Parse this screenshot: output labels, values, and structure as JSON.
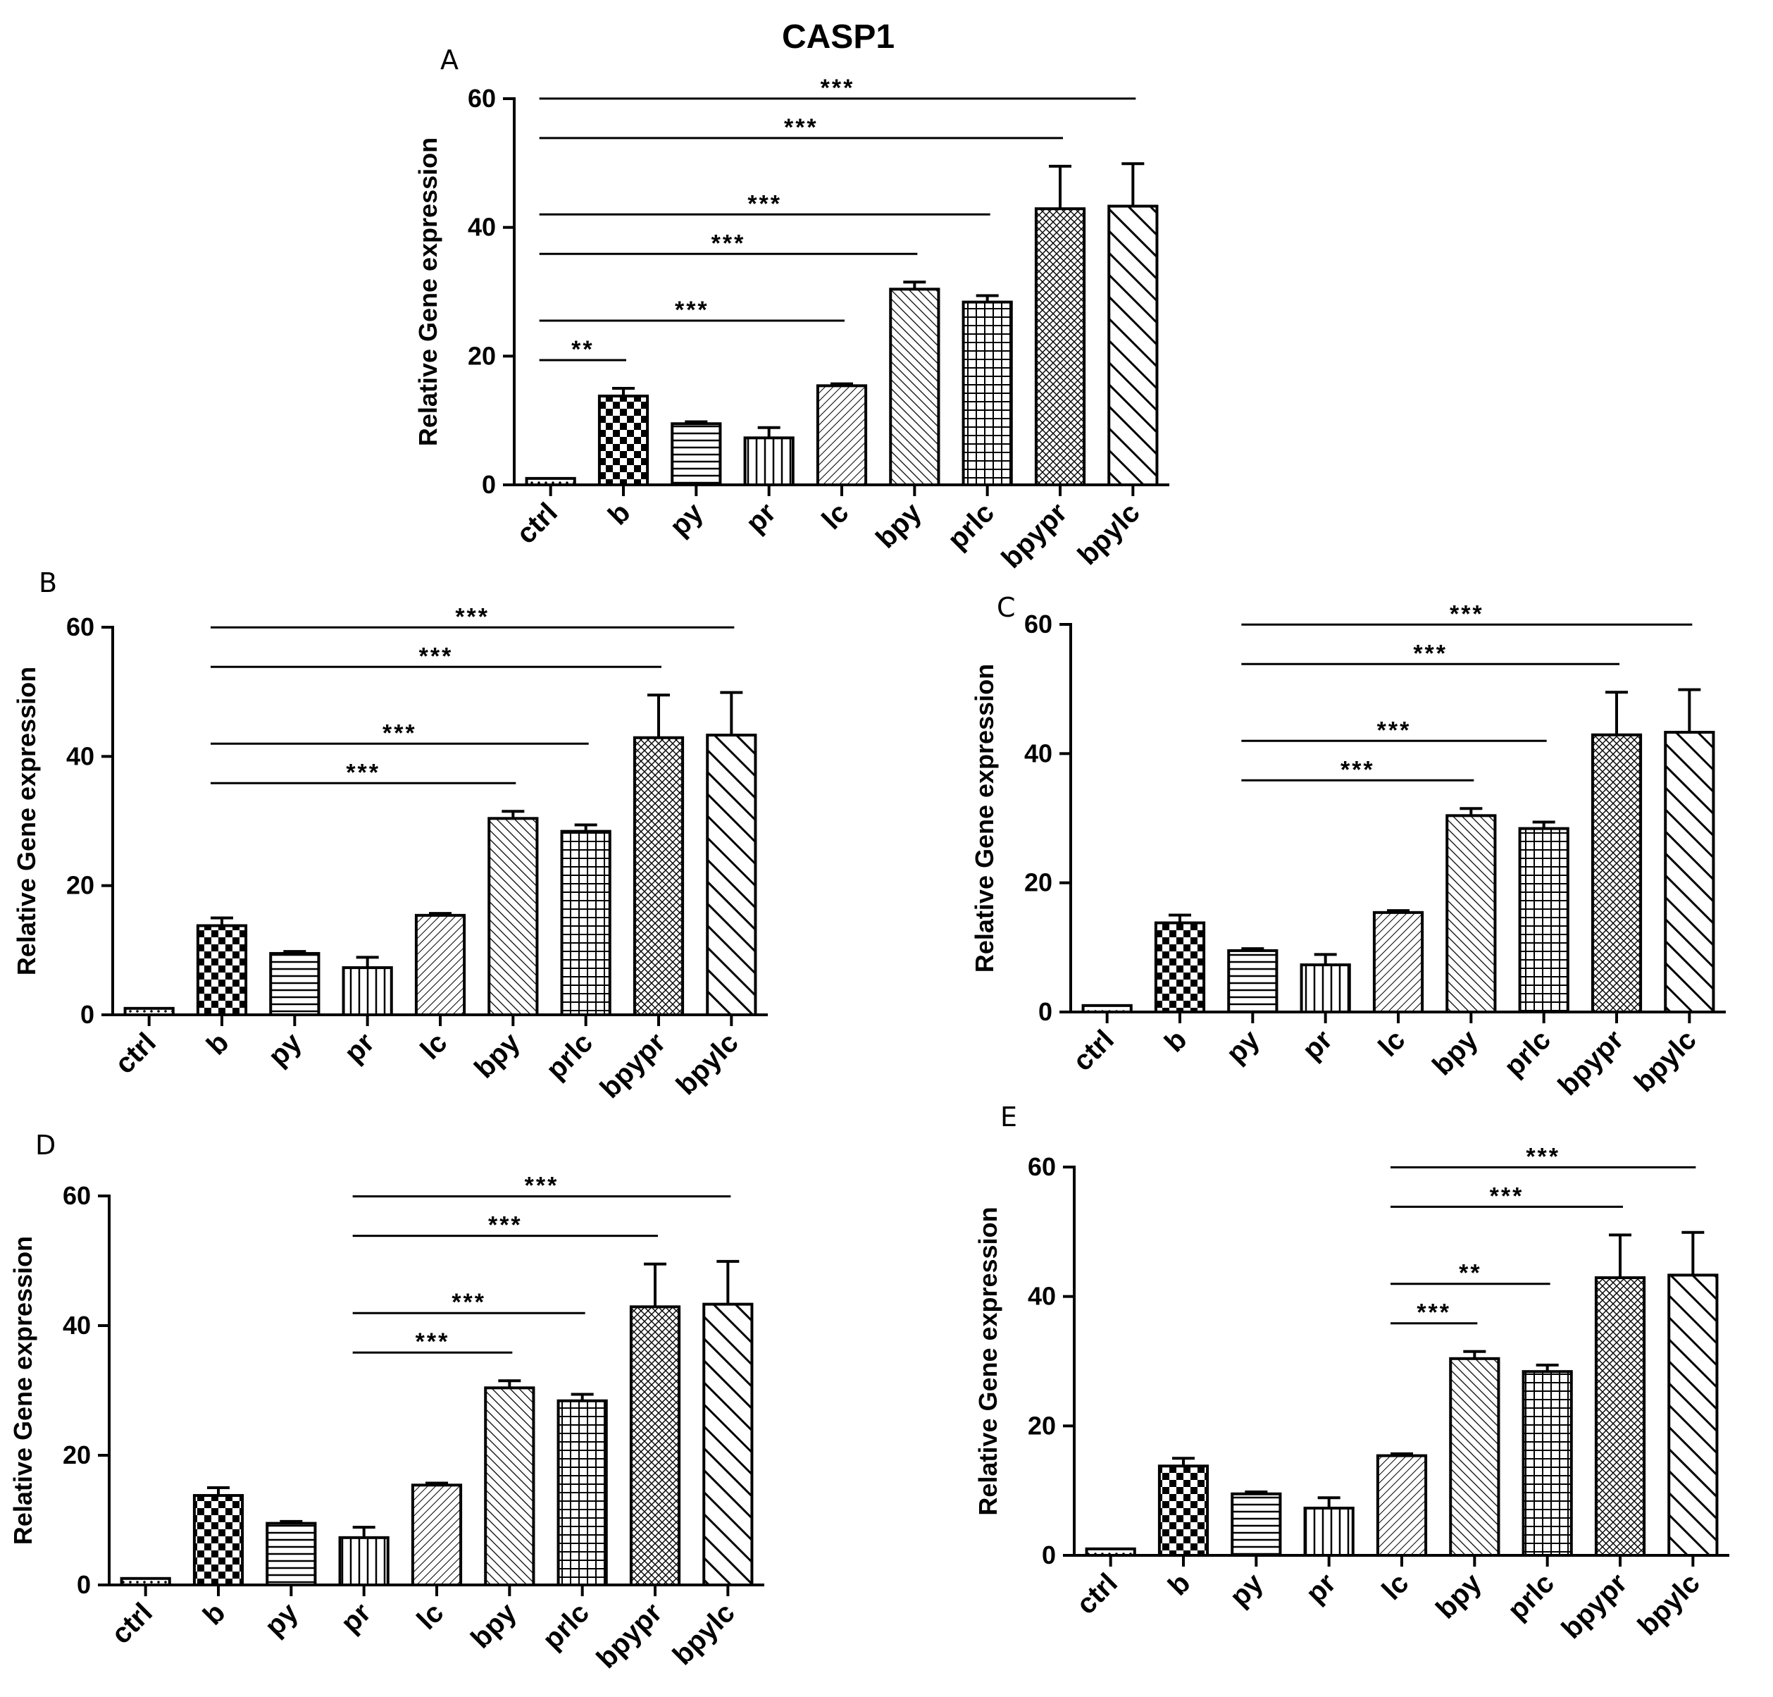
{
  "figure_title": "CASP1",
  "patterns": {
    "ctrl": "dots",
    "b": "checker",
    "py": "hlines",
    "pr": "vlines",
    "lc": "fine-diag",
    "bpy": "diag-down",
    "prlc": "grid",
    "bpypr": "cross-diag",
    "bpylc": "wide-diag"
  },
  "chart_data": [
    {
      "panel": "A",
      "type": "bar",
      "title": "",
      "ylabel": "Relative Gene expression",
      "xlabel": "",
      "ylim": [
        0,
        60
      ],
      "yticks": [
        "0",
        "20",
        "40",
        "60"
      ],
      "categories": [
        "ctrl",
        "b",
        "py",
        "pr",
        "lc",
        "bpy",
        "prlc",
        "bpypr",
        "bpylc"
      ],
      "values": [
        1,
        13.8,
        9.5,
        7.3,
        15.4,
        30.4,
        28.4,
        42.9,
        43.3
      ],
      "errors": [
        0,
        1.2,
        0.3,
        1.6,
        0.3,
        1.1,
        1.0,
        6.6,
        6.6
      ],
      "significance": [
        {
          "label": "**",
          "from": "ctrl",
          "to": "b"
        },
        {
          "label": "***",
          "from": "ctrl",
          "to": "lc"
        },
        {
          "label": "***",
          "from": "ctrl",
          "to": "bpy"
        },
        {
          "label": "***",
          "from": "ctrl",
          "to": "prlc"
        },
        {
          "label": "***",
          "from": "ctrl",
          "to": "bpypr"
        },
        {
          "label": "***",
          "from": "ctrl",
          "to": "bpylc"
        }
      ]
    },
    {
      "panel": "B",
      "type": "bar",
      "title": "",
      "ylabel": "Relative Gene expression",
      "xlabel": "",
      "ylim": [
        0,
        60
      ],
      "yticks": [
        "0",
        "20",
        "40",
        "60"
      ],
      "categories": [
        "ctrl",
        "b",
        "py",
        "pr",
        "lc",
        "bpy",
        "prlc",
        "bpypr",
        "bpylc"
      ],
      "values": [
        1,
        13.8,
        9.5,
        7.3,
        15.4,
        30.4,
        28.4,
        42.9,
        43.3
      ],
      "errors": [
        0,
        1.2,
        0.3,
        1.6,
        0.3,
        1.1,
        1.0,
        6.6,
        6.6
      ],
      "significance": [
        {
          "label": "***",
          "from": "b",
          "to": "bpy"
        },
        {
          "label": "***",
          "from": "b",
          "to": "prlc"
        },
        {
          "label": "***",
          "from": "b",
          "to": "bpypr"
        },
        {
          "label": "***",
          "from": "b",
          "to": "bpylc"
        }
      ]
    },
    {
      "panel": "C",
      "type": "bar",
      "title": "",
      "ylabel": "Relative Gene expression",
      "xlabel": "",
      "ylim": [
        0,
        60
      ],
      "yticks": [
        "0",
        "20",
        "40",
        "60"
      ],
      "categories": [
        "ctrl",
        "b",
        "py",
        "pr",
        "lc",
        "bpy",
        "prlc",
        "bpypr",
        "bpylc"
      ],
      "values": [
        1,
        13.8,
        9.5,
        7.3,
        15.4,
        30.4,
        28.4,
        42.9,
        43.3
      ],
      "errors": [
        0,
        1.2,
        0.3,
        1.6,
        0.3,
        1.1,
        1.0,
        6.6,
        6.6
      ],
      "significance": [
        {
          "label": "***",
          "from": "py",
          "to": "bpy"
        },
        {
          "label": "***",
          "from": "py",
          "to": "prlc"
        },
        {
          "label": "***",
          "from": "py",
          "to": "bpypr"
        },
        {
          "label": "***",
          "from": "py",
          "to": "bpylc"
        }
      ]
    },
    {
      "panel": "D",
      "type": "bar",
      "title": "",
      "ylabel": "Relative Gene expression",
      "xlabel": "",
      "ylim": [
        0,
        60
      ],
      "yticks": [
        "0",
        "20",
        "40",
        "60"
      ],
      "categories": [
        "ctrl",
        "b",
        "py",
        "pr",
        "lc",
        "bpy",
        "prlc",
        "bpypr",
        "bpylc"
      ],
      "values": [
        1,
        13.8,
        9.5,
        7.3,
        15.4,
        30.4,
        28.4,
        42.9,
        43.3
      ],
      "errors": [
        0,
        1.2,
        0.3,
        1.6,
        0.3,
        1.1,
        1.0,
        6.6,
        6.6
      ],
      "significance": [
        {
          "label": "***",
          "from": "pr",
          "to": "bpy"
        },
        {
          "label": "***",
          "from": "pr",
          "to": "prlc"
        },
        {
          "label": "***",
          "from": "pr",
          "to": "bpypr"
        },
        {
          "label": "***",
          "from": "pr",
          "to": "bpylc"
        }
      ]
    },
    {
      "panel": "E",
      "type": "bar",
      "title": "",
      "ylabel": "Relative Gene expression",
      "xlabel": "",
      "ylim": [
        0,
        60
      ],
      "yticks": [
        "0",
        "20",
        "40",
        "60"
      ],
      "categories": [
        "ctrl",
        "b",
        "py",
        "pr",
        "lc",
        "bpy",
        "prlc",
        "bpypr",
        "bpylc"
      ],
      "values": [
        1,
        13.8,
        9.5,
        7.3,
        15.4,
        30.4,
        28.4,
        42.9,
        43.3
      ],
      "errors": [
        0,
        1.2,
        0.3,
        1.6,
        0.3,
        1.1,
        1.0,
        6.6,
        6.6
      ],
      "significance": [
        {
          "label": "***",
          "from": "lc",
          "to": "bpy"
        },
        {
          "label": "**",
          "from": "lc",
          "to": "prlc"
        },
        {
          "label": "***",
          "from": "lc",
          "to": "bpypr"
        },
        {
          "label": "***",
          "from": "lc",
          "to": "bpylc"
        }
      ]
    }
  ]
}
